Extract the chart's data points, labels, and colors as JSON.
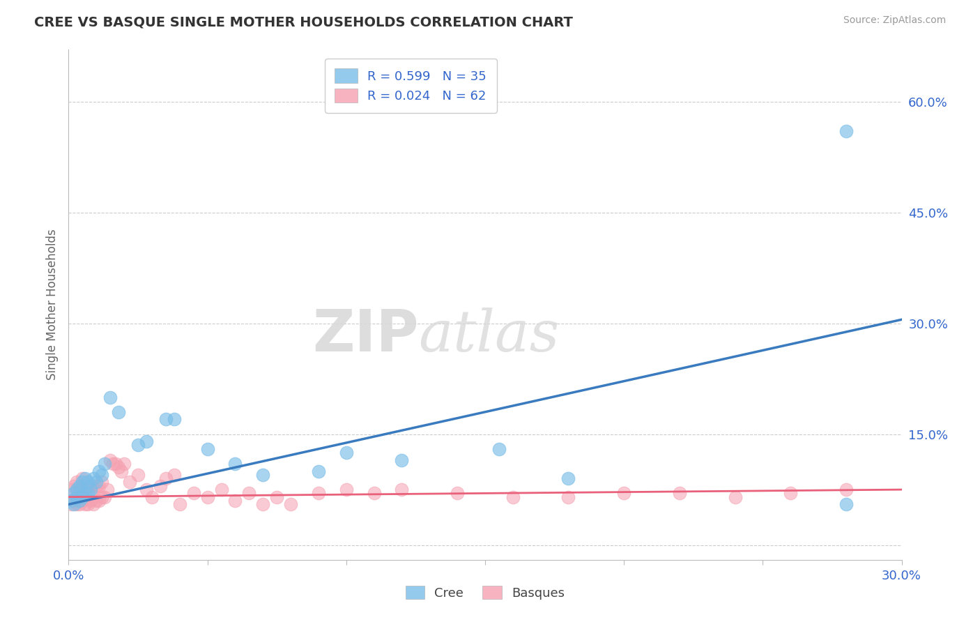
{
  "title": "CREE VS BASQUE SINGLE MOTHER HOUSEHOLDS CORRELATION CHART",
  "source_text": "Source: ZipAtlas.com",
  "ylabel": "Single Mother Households",
  "xlim": [
    0.0,
    0.3
  ],
  "ylim": [
    -0.02,
    0.67
  ],
  "ytick_vals": [
    0.0,
    0.15,
    0.3,
    0.45,
    0.6
  ],
  "ytick_labels": [
    "",
    "15.0%",
    "30.0%",
    "45.0%",
    "60.0%"
  ],
  "xtick_vals": [
    0.0,
    0.05,
    0.1,
    0.15,
    0.2,
    0.25,
    0.3
  ],
  "xtick_labels": [
    "0.0%",
    "",
    "",
    "",
    "",
    "",
    "30.0%"
  ],
  "cree_R": 0.599,
  "cree_N": 35,
  "basque_R": 0.024,
  "basque_N": 62,
  "cree_color": "#7abde8",
  "basque_color": "#f5a0b0",
  "trend_cree_color": "#3a7bbf",
  "trend_basque_color": "#e8607a",
  "watermark": "ZIPatlas",
  "background_color": "#ffffff",
  "grid_color": "#cccccc",
  "cree_trend_x0": 0.0,
  "cree_trend_y0": 0.055,
  "cree_trend_x1": 0.3,
  "cree_trend_y1": 0.305,
  "basque_trend_x0": 0.0,
  "basque_trend_y0": 0.065,
  "basque_trend_x1": 0.3,
  "basque_trend_y1": 0.075,
  "cree_x": [
    0.001,
    0.002,
    0.002,
    0.003,
    0.003,
    0.004,
    0.004,
    0.005,
    0.005,
    0.006,
    0.006,
    0.007,
    0.007,
    0.008,
    0.009,
    0.01,
    0.011,
    0.012,
    0.013,
    0.015,
    0.018,
    0.025,
    0.028,
    0.035,
    0.038,
    0.05,
    0.06,
    0.07,
    0.09,
    0.1,
    0.12,
    0.155,
    0.18,
    0.28,
    0.28
  ],
  "cree_y": [
    0.06,
    0.055,
    0.07,
    0.065,
    0.075,
    0.06,
    0.08,
    0.065,
    0.085,
    0.07,
    0.09,
    0.07,
    0.085,
    0.075,
    0.09,
    0.085,
    0.1,
    0.095,
    0.11,
    0.2,
    0.18,
    0.135,
    0.14,
    0.17,
    0.17,
    0.13,
    0.11,
    0.095,
    0.1,
    0.125,
    0.115,
    0.13,
    0.09,
    0.56,
    0.055
  ],
  "basque_x": [
    0.001,
    0.001,
    0.002,
    0.002,
    0.003,
    0.003,
    0.003,
    0.004,
    0.004,
    0.005,
    0.005,
    0.005,
    0.006,
    0.006,
    0.007,
    0.007,
    0.008,
    0.008,
    0.009,
    0.009,
    0.01,
    0.01,
    0.011,
    0.011,
    0.012,
    0.012,
    0.013,
    0.014,
    0.015,
    0.016,
    0.017,
    0.018,
    0.019,
    0.02,
    0.022,
    0.025,
    0.028,
    0.03,
    0.033,
    0.035,
    0.038,
    0.04,
    0.045,
    0.05,
    0.055,
    0.06,
    0.065,
    0.07,
    0.075,
    0.08,
    0.09,
    0.1,
    0.11,
    0.12,
    0.14,
    0.16,
    0.18,
    0.2,
    0.22,
    0.24,
    0.26,
    0.28
  ],
  "basque_y": [
    0.055,
    0.075,
    0.06,
    0.08,
    0.055,
    0.065,
    0.085,
    0.055,
    0.075,
    0.06,
    0.07,
    0.09,
    0.055,
    0.075,
    0.055,
    0.08,
    0.06,
    0.08,
    0.055,
    0.075,
    0.06,
    0.08,
    0.06,
    0.08,
    0.065,
    0.085,
    0.065,
    0.075,
    0.115,
    0.11,
    0.11,
    0.105,
    0.1,
    0.11,
    0.085,
    0.095,
    0.075,
    0.065,
    0.08,
    0.09,
    0.095,
    0.055,
    0.07,
    0.065,
    0.075,
    0.06,
    0.07,
    0.055,
    0.065,
    0.055,
    0.07,
    0.075,
    0.07,
    0.075,
    0.07,
    0.065,
    0.065,
    0.07,
    0.07,
    0.065,
    0.07,
    0.075
  ]
}
